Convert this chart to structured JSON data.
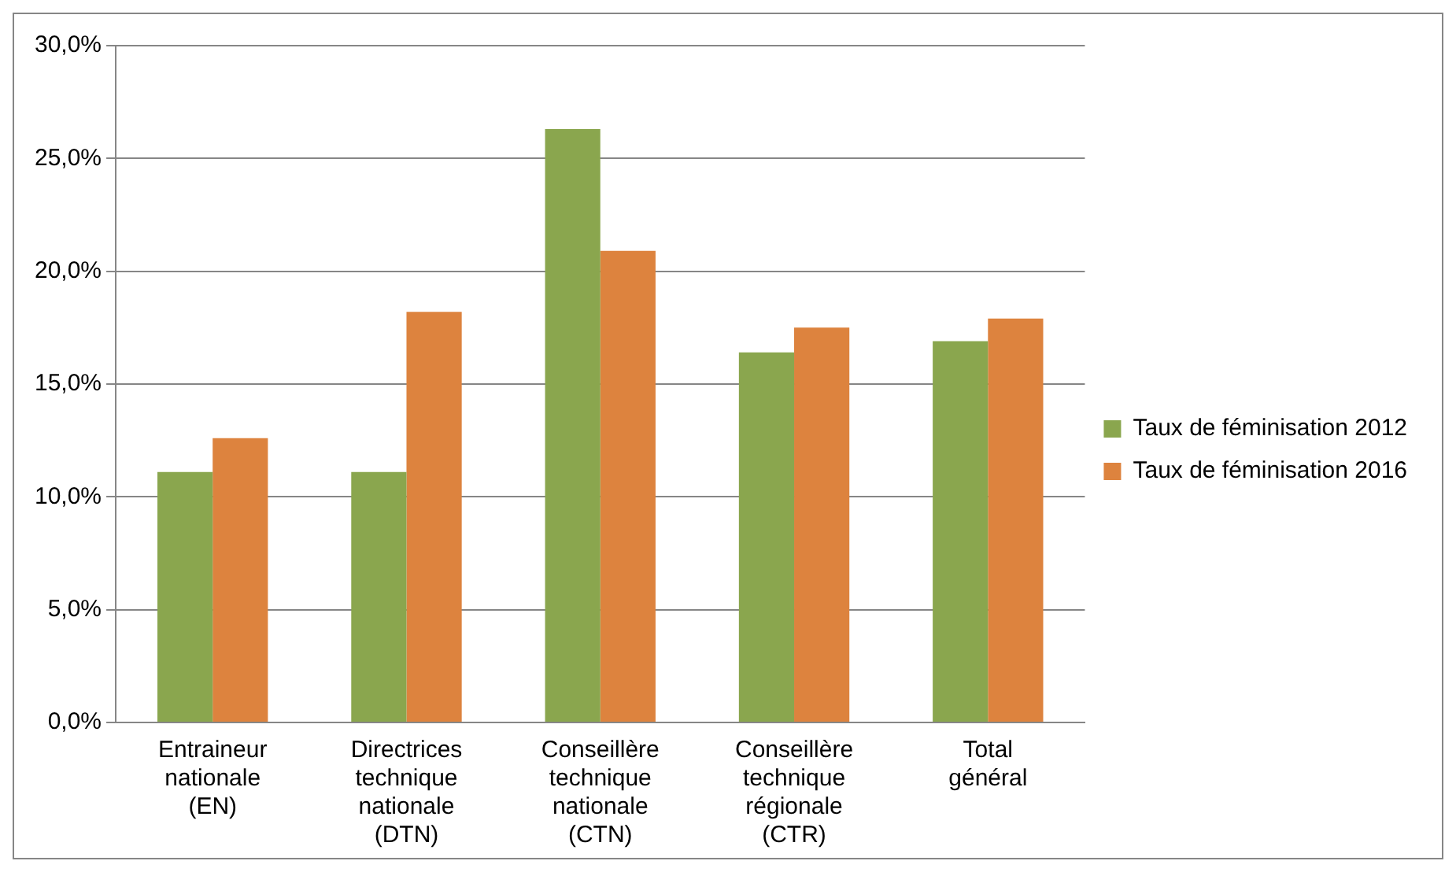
{
  "chart_data": {
    "type": "bar",
    "categories": [
      "Entraineur nationale (EN)",
      "Directrices technique nationale (DTN)",
      "Conseillère technique nationale (CTN)",
      "Conseillère technique régionale (CTR)",
      "Total général"
    ],
    "series": [
      {
        "name": "Taux de féminisation 2012",
        "color": "#8aa64e",
        "values": [
          11.1,
          11.1,
          26.3,
          16.4,
          16.9
        ]
      },
      {
        "name": "Taux de féminisation 2016",
        "color": "#dd833e",
        "values": [
          12.6,
          18.2,
          20.9,
          17.5,
          17.9
        ]
      }
    ],
    "ylim": [
      0,
      30
    ],
    "yticks": [
      {
        "value": 0,
        "label": "0,0%"
      },
      {
        "value": 5,
        "label": "5,0%"
      },
      {
        "value": 10,
        "label": "10,0%"
      },
      {
        "value": 15,
        "label": "15,0%"
      },
      {
        "value": 20,
        "label": "20,0%"
      },
      {
        "value": 25,
        "label": "25,0%"
      },
      {
        "value": 30,
        "label": "30,0%"
      }
    ],
    "grid": "y",
    "legend": "right"
  }
}
